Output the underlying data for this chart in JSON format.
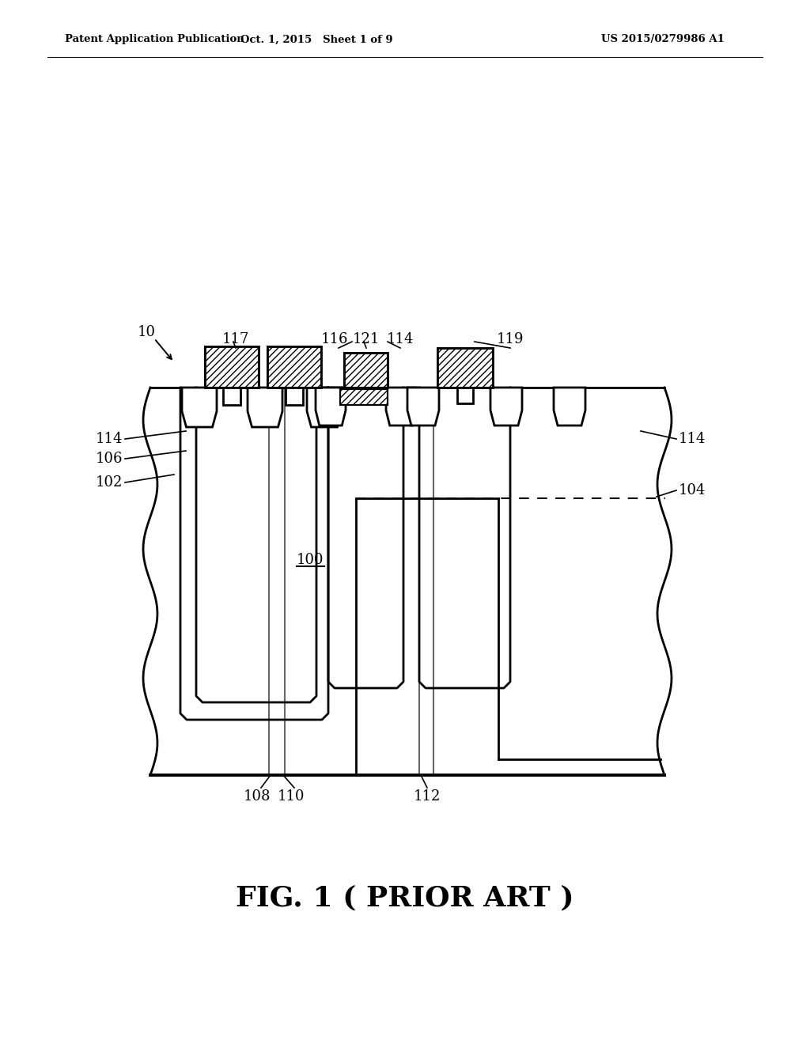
{
  "bg_color": "#ffffff",
  "lc": "#000000",
  "header_left": "Patent Application Publication",
  "header_center": "Oct. 1, 2015   Sheet 1 of 9",
  "header_right": "US 2015/0279986 A1",
  "figure_label": "FIG. 1 ( PRIOR ART )"
}
